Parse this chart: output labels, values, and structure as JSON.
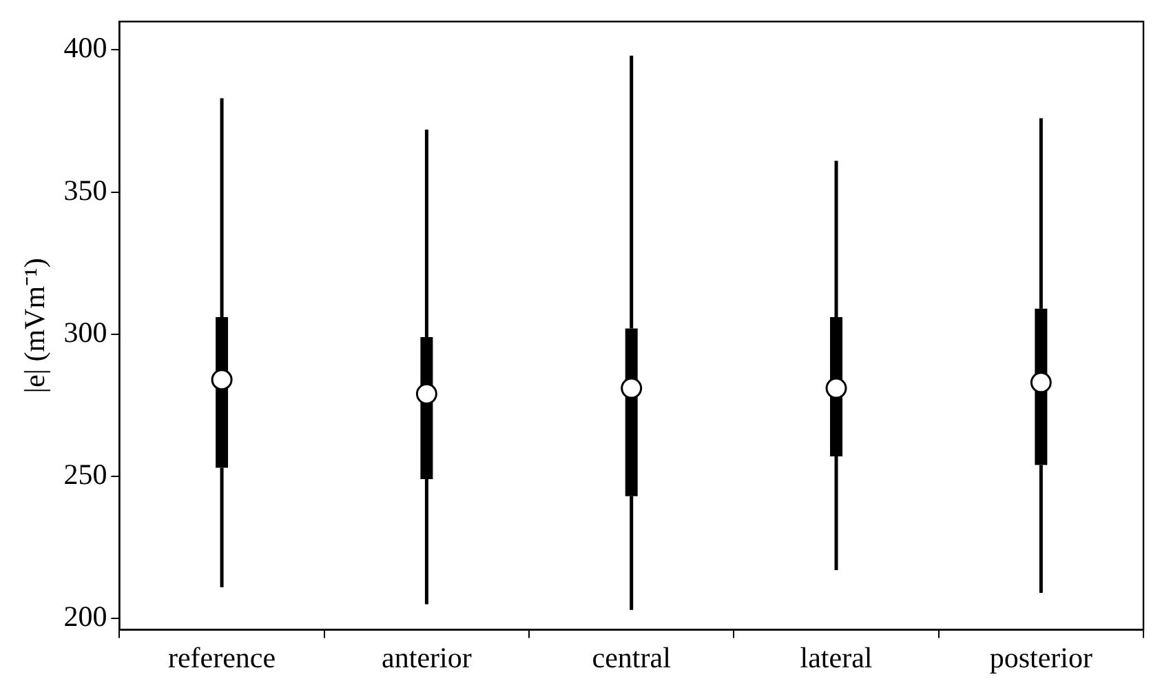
{
  "chart_data": {
    "type": "box",
    "ylabel": "|e| (mVm⁻¹)",
    "categories": [
      "reference",
      "anterior",
      "central",
      "lateral",
      "posterior"
    ],
    "color": "#000000",
    "boxes": [
      {
        "low": 211,
        "q1": 253,
        "median": 284,
        "q3": 306,
        "high": 383
      },
      {
        "low": 205,
        "q1": 249,
        "median": 279,
        "q3": 299,
        "high": 372
      },
      {
        "low": 203,
        "q1": 243,
        "median": 281,
        "q3": 302,
        "high": 398
      },
      {
        "low": 217,
        "q1": 257,
        "median": 281,
        "q3": 306,
        "high": 361
      },
      {
        "low": 209,
        "q1": 254,
        "median": 283,
        "q3": 309,
        "high": 376
      }
    ],
    "ylim": [
      196,
      410
    ],
    "yticks": [
      200,
      250,
      300,
      350,
      400
    ],
    "grid": false,
    "legend": false
  }
}
